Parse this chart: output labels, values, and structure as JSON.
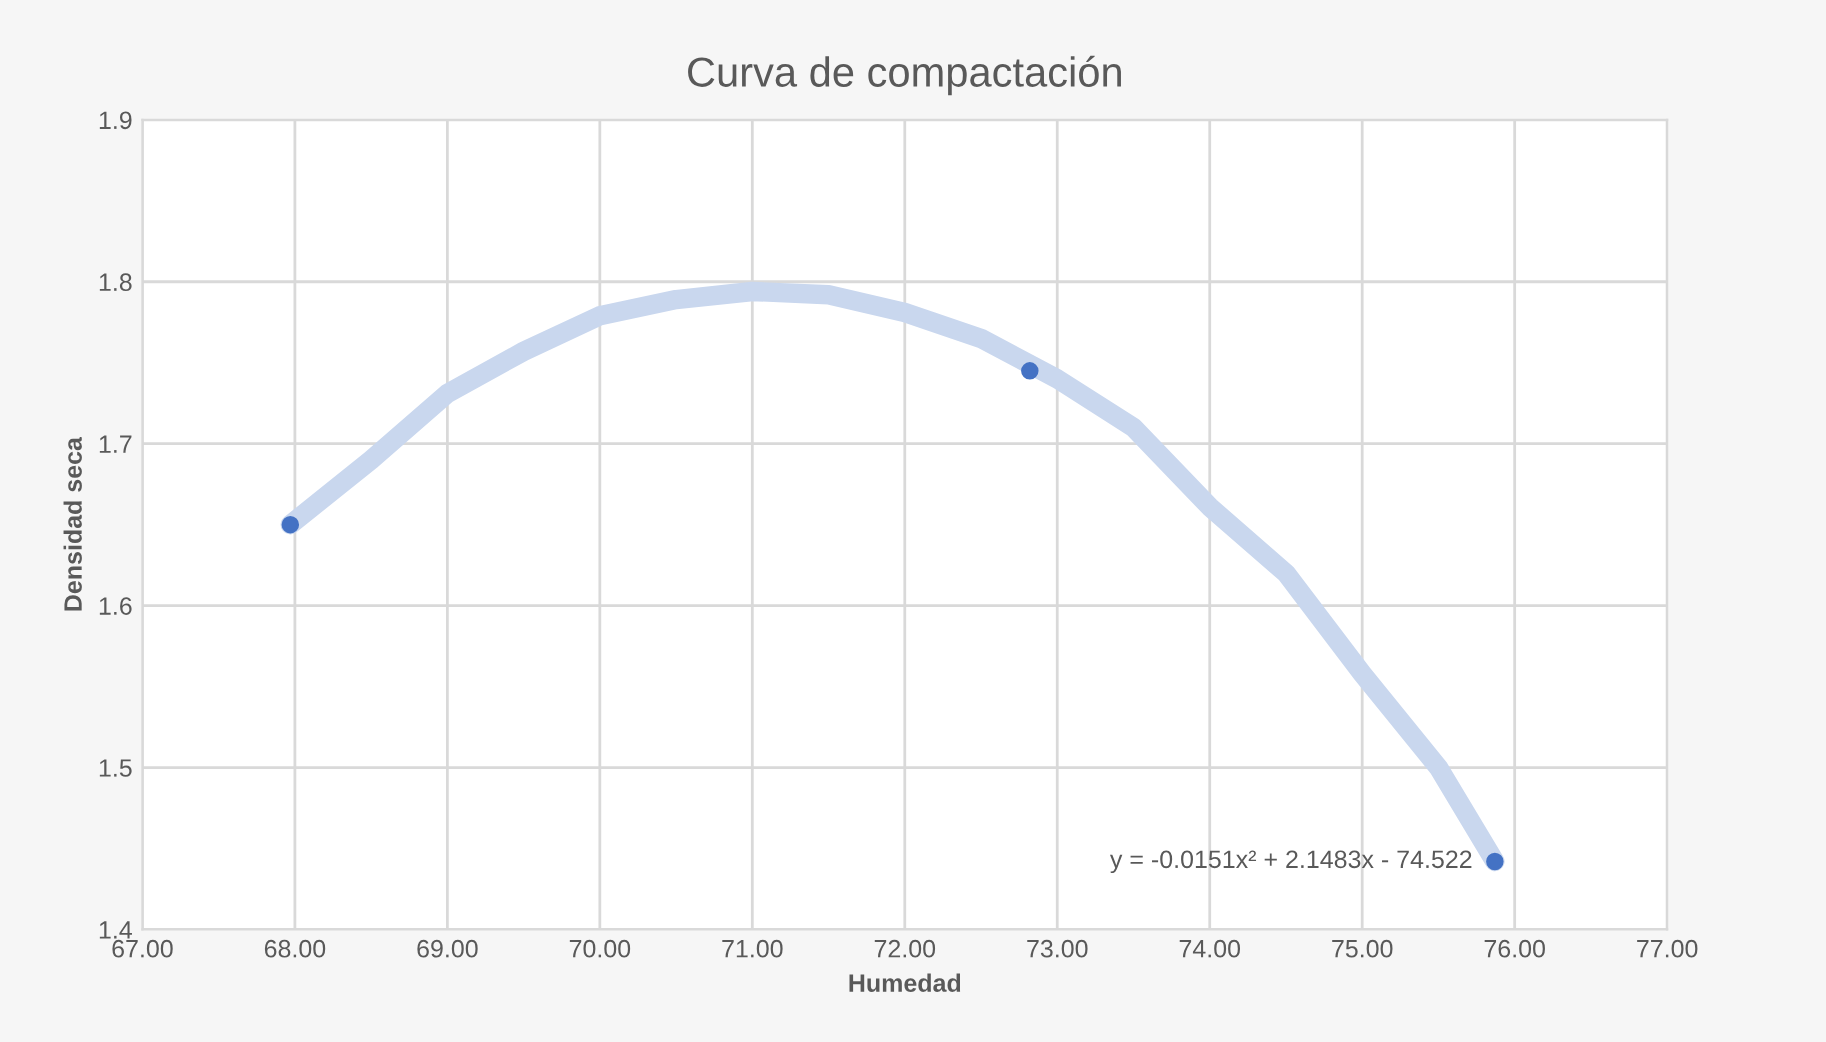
{
  "chart_data": {
    "type": "scatter",
    "title": "Curva de compactación",
    "xlabel": "Humedad",
    "ylabel": "Densidad seca",
    "series": [
      {
        "type": "line",
        "marker": "none",
        "color": "#c9d7ee",
        "x": [
          67.97,
          68.5,
          69,
          69.5,
          70,
          70.5,
          71,
          71.5,
          72,
          72.5,
          73,
          73.5,
          74,
          74.5,
          75,
          75.5,
          75.87
        ],
        "values": [
          1.65,
          1.69,
          1.731,
          1.757,
          1.779,
          1.789,
          1.794,
          1.792,
          1.781,
          1.765,
          1.74,
          1.71,
          1.661,
          1.62,
          1.558,
          1.5,
          1.442
        ]
      },
      {
        "marker": "circle",
        "color": "#4472c4",
        "x": [
          67.97,
          72.82,
          75.87
        ],
        "values": [
          1.65,
          1.745,
          1.442
        ]
      }
    ],
    "annotations": [
      {
        "text": "y = -0.0151x² + 2.1483x - 74.522",
        "x": 75.87,
        "y": 1.442
      }
    ],
    "xlim": [
      67,
      77
    ],
    "xticks": [
      {
        "value": 67,
        "label": "67.00"
      },
      {
        "value": 68,
        "label": "68.00"
      },
      {
        "value": 69,
        "label": "69.00"
      },
      {
        "value": 70,
        "label": "70.00"
      },
      {
        "value": 71,
        "label": "71.00"
      },
      {
        "value": 72,
        "label": "72.00"
      },
      {
        "value": 73,
        "label": "73.00"
      },
      {
        "value": 74,
        "label": "74.00"
      },
      {
        "value": 75,
        "label": "75.00"
      },
      {
        "value": 76,
        "label": "76.00"
      },
      {
        "value": 77,
        "label": "77.00"
      }
    ],
    "ylim": [
      1.4,
      1.9
    ],
    "yticks": [
      1.4,
      1.5,
      1.6,
      1.7,
      1.8,
      1.9
    ],
    "grid": true
  }
}
